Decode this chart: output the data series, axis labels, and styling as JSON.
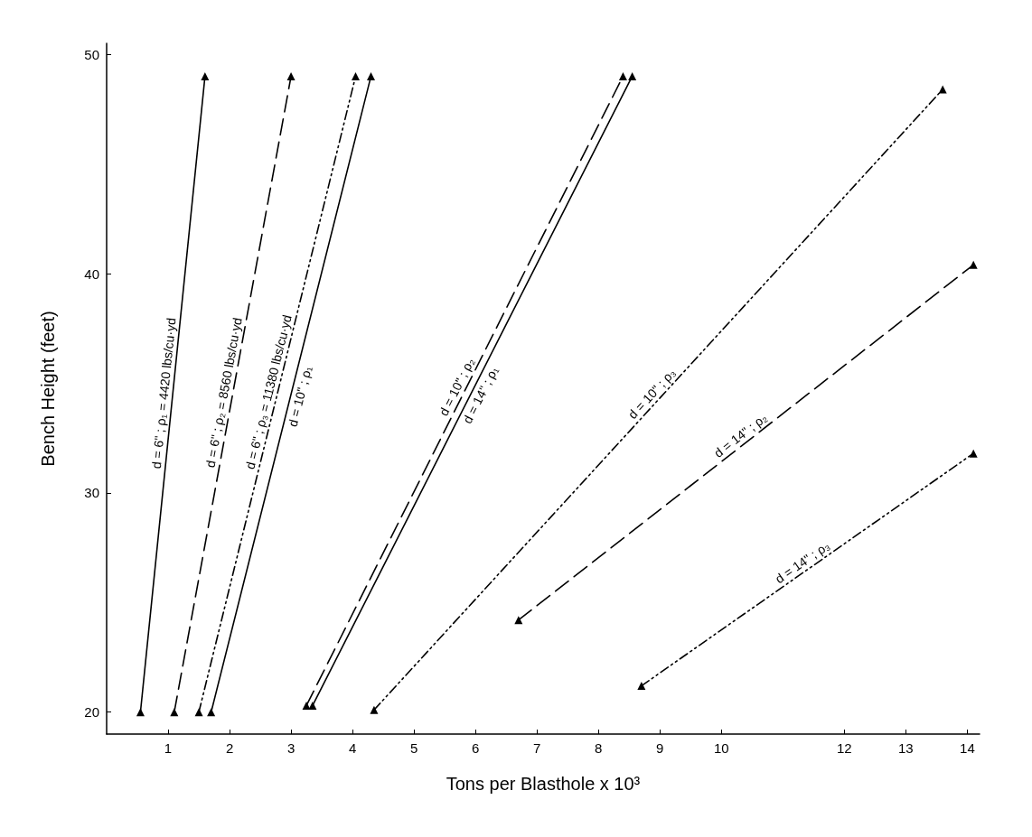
{
  "chart_data": {
    "type": "line",
    "xlabel": "Tons per Blasthole x 10³",
    "ylabel": "Bench Height (feet)",
    "xlim": [
      0,
      14.2
    ],
    "ylim": [
      19,
      50.5
    ],
    "xticks": [
      1,
      2,
      3,
      4,
      5,
      6,
      7,
      8,
      9,
      10,
      12,
      13,
      14
    ],
    "yticks": [
      20,
      30,
      40,
      50
    ],
    "grid": false,
    "legend": false,
    "marker": "triangle",
    "series": [
      {
        "name": "d = 6\" ; ρ₁ = 4420 lbs/cu·yd",
        "color": "#000000",
        "line_style": "solid",
        "x": [
          0.55,
          1.6
        ],
        "values": [
          20,
          49
        ]
      },
      {
        "name": "d = 6\" ; ρ₂ = 8560 lbs/cu·yd",
        "color": "#000000",
        "line_style": "dashed",
        "x": [
          1.1,
          3.0
        ],
        "values": [
          20,
          49
        ]
      },
      {
        "name": "d = 6\" ; ρ₃ = 11380 lbs/cu·yd",
        "color": "#000000",
        "line_style": "dotted",
        "x": [
          1.5,
          4.05
        ],
        "values": [
          20,
          49
        ]
      },
      {
        "name": "d = 10\" ; ρ₁",
        "color": "#000000",
        "line_style": "solid",
        "x": [
          1.7,
          4.3
        ],
        "values": [
          20,
          49
        ]
      },
      {
        "name": "d = 10\" ; ρ₂",
        "color": "#000000",
        "line_style": "dashed",
        "x": [
          3.25,
          8.4
        ],
        "values": [
          20.3,
          49
        ]
      },
      {
        "name": "d = 14\" ; ρ₁",
        "color": "#000000",
        "line_style": "solid",
        "x": [
          3.35,
          8.55
        ],
        "values": [
          20.3,
          49
        ]
      },
      {
        "name": "d = 10\" ; ρ₃",
        "color": "#000000",
        "line_style": "dotted",
        "x": [
          4.35,
          13.6
        ],
        "values": [
          20.1,
          48.4
        ]
      },
      {
        "name": "d = 14\" ; ρ₂",
        "color": "#000000",
        "line_style": "dashed",
        "x": [
          6.7,
          14.1
        ],
        "values": [
          24.2,
          40.4
        ]
      },
      {
        "name": "d = 14\" ; ρ₃",
        "color": "#000000",
        "line_style": "dotted",
        "x": [
          8.7,
          14.1
        ],
        "values": [
          21.2,
          31.8
        ]
      }
    ]
  }
}
